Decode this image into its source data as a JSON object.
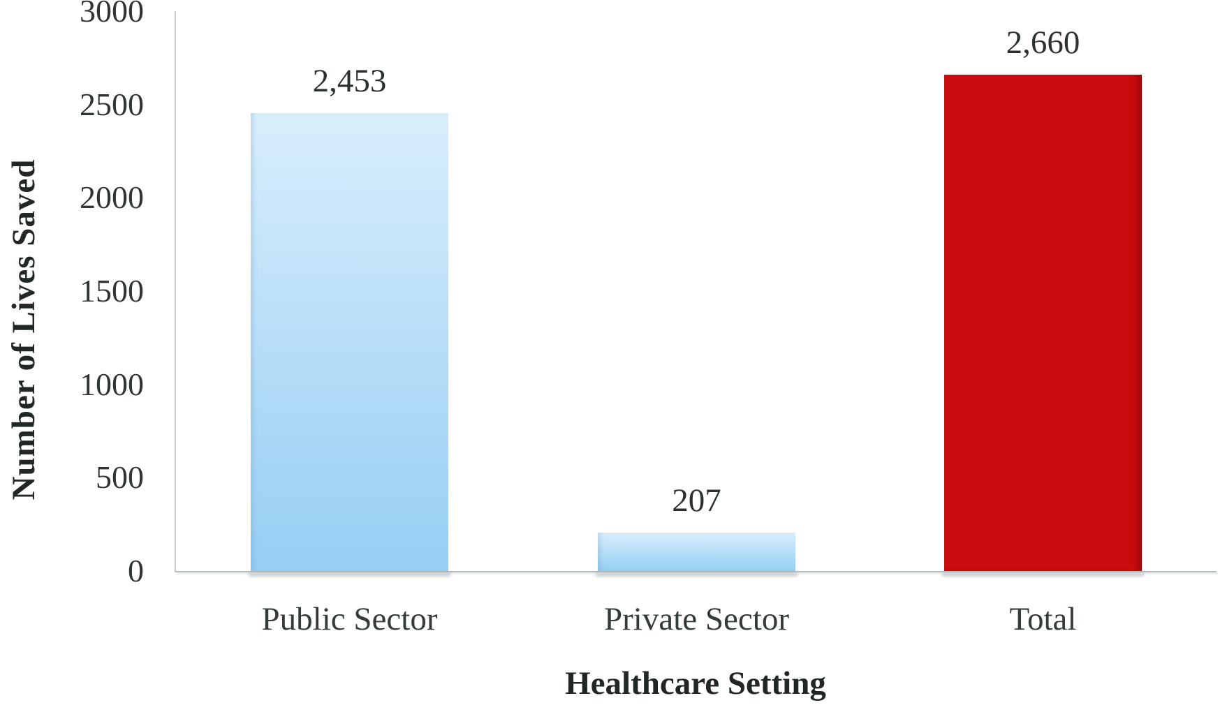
{
  "colors": {
    "background": "#ffffff",
    "axis_line": "#c2c7c7",
    "text": "#2f3434",
    "title_text": "#212727",
    "blue_gradient_top": "#d9eefc",
    "blue_gradient_bottom": "#96cef4",
    "red": "#c90c0e"
  },
  "chart_data": {
    "type": "bar",
    "title": "",
    "xlabel": "Healthcare Setting",
    "ylabel": "Number of Lives Saved",
    "categories": [
      "Public Sector",
      "Private Sector",
      "Total"
    ],
    "values": [
      2453,
      207,
      2660
    ],
    "bars": [
      {
        "category": "Public Sector",
        "value": 2453,
        "value_label": "2,453",
        "fill": "blue"
      },
      {
        "category": "Private Sector",
        "value": 207,
        "value_label": "207",
        "fill": "blue"
      },
      {
        "category": "Total",
        "value": 2660,
        "value_label": "2,660",
        "fill": "red"
      }
    ],
    "ylim": [
      0,
      3000
    ],
    "yticks": [
      3000,
      2500,
      2000,
      1500,
      1000,
      500,
      0
    ],
    "grid": false,
    "legend": "none"
  }
}
